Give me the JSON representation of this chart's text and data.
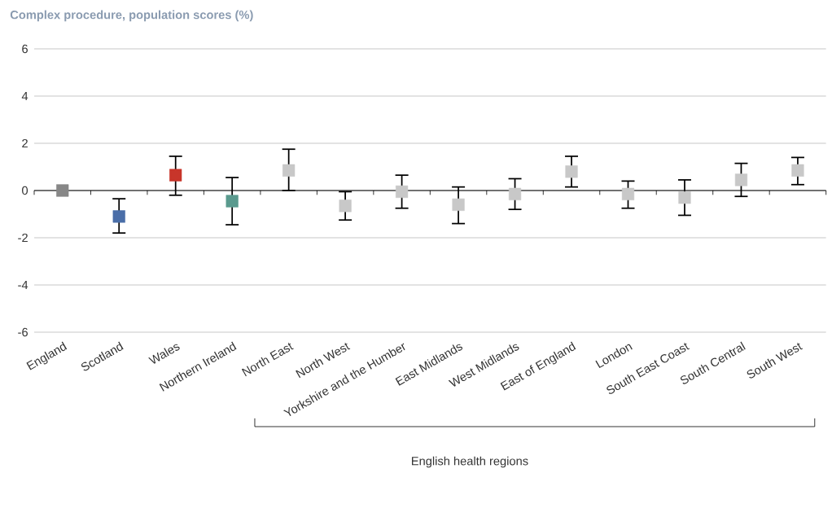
{
  "chart_data": {
    "type": "scatter",
    "title": "Complex procedure, population scores (%)",
    "categories": [
      "England",
      "Scotland",
      "Wales",
      "Northern Ireland",
      "North East",
      "North West",
      "Yorkshire and the Humber",
      "East Midlands",
      "West Midlands",
      "East of England",
      "London",
      "South East Coast",
      "South Central",
      "South West"
    ],
    "values": [
      0,
      -1.1,
      0.65,
      -0.45,
      0.85,
      -0.65,
      -0.05,
      -0.6,
      -0.15,
      0.8,
      -0.15,
      -0.3,
      0.45,
      0.85
    ],
    "errors": [
      null,
      [
        -1.8,
        -0.35
      ],
      [
        -0.2,
        1.45
      ],
      [
        -1.45,
        0.55
      ],
      [
        0,
        1.75
      ],
      [
        -1.25,
        -0.05
      ],
      [
        -0.75,
        0.65
      ],
      [
        -1.4,
        0.15
      ],
      [
        -0.8,
        0.5
      ],
      [
        0.15,
        1.45
      ],
      [
        -0.75,
        0.4
      ],
      [
        -1.05,
        0.45
      ],
      [
        -0.25,
        1.15
      ],
      [
        0.25,
        1.4
      ]
    ],
    "colors": [
      "#878787",
      "#4a6ea8",
      "#c8352a",
      "#5a9a8e",
      "#c8c8c8",
      "#c8c8c8",
      "#c8c8c8",
      "#c8c8c8",
      "#c8c8c8",
      "#c8c8c8",
      "#c8c8c8",
      "#c8c8c8",
      "#c8c8c8",
      "#c8c8c8"
    ],
    "marker": "square",
    "ylim": [
      -6,
      6
    ],
    "yticks": [
      -6,
      -4,
      -2,
      0,
      2,
      4,
      6
    ],
    "grid": "y",
    "annotations": [
      "English health regions"
    ]
  }
}
